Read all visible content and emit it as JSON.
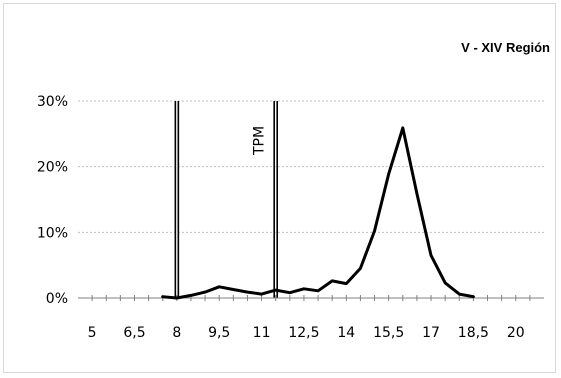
{
  "chart_data": {
    "type": "line",
    "title": "V - XIV Región",
    "xlabel": "",
    "ylabel": "",
    "xlim": [
      4.5,
      21
    ],
    "ylim": [
      0,
      30
    ],
    "x_ticks": [
      5,
      6.5,
      8,
      9.5,
      11,
      12.5,
      14,
      15.5,
      17,
      18.5,
      20
    ],
    "x_tick_labels": [
      "5",
      "6,5",
      "8",
      "9,5",
      "11",
      "12,5",
      "14",
      "15,5",
      "17",
      "18,5",
      "20"
    ],
    "y_ticks": [
      0,
      10,
      20,
      30
    ],
    "y_tick_labels": [
      "0%",
      "10%",
      "20%",
      "30%"
    ],
    "grid": true,
    "series": [
      {
        "x": [
          7.5,
          8,
          8.5,
          9,
          9.5,
          10,
          10.5,
          11,
          11.5,
          12,
          12.5,
          13,
          13.5,
          14,
          14.5,
          15,
          15.5,
          16,
          16.5,
          17,
          17.5,
          18,
          18.5
        ],
        "values": [
          0.2,
          0.0,
          0.4,
          0.9,
          1.7,
          1.3,
          0.9,
          0.6,
          1.2,
          0.8,
          1.4,
          1.1,
          2.6,
          2.2,
          4.5,
          10.2,
          18.9,
          25.9,
          15.9,
          6.5,
          2.3,
          0.6,
          0.2
        ]
      }
    ],
    "vertical_lines": [
      {
        "x": 8,
        "label": ""
      },
      {
        "x": 11.5,
        "label": "TPM"
      }
    ]
  }
}
